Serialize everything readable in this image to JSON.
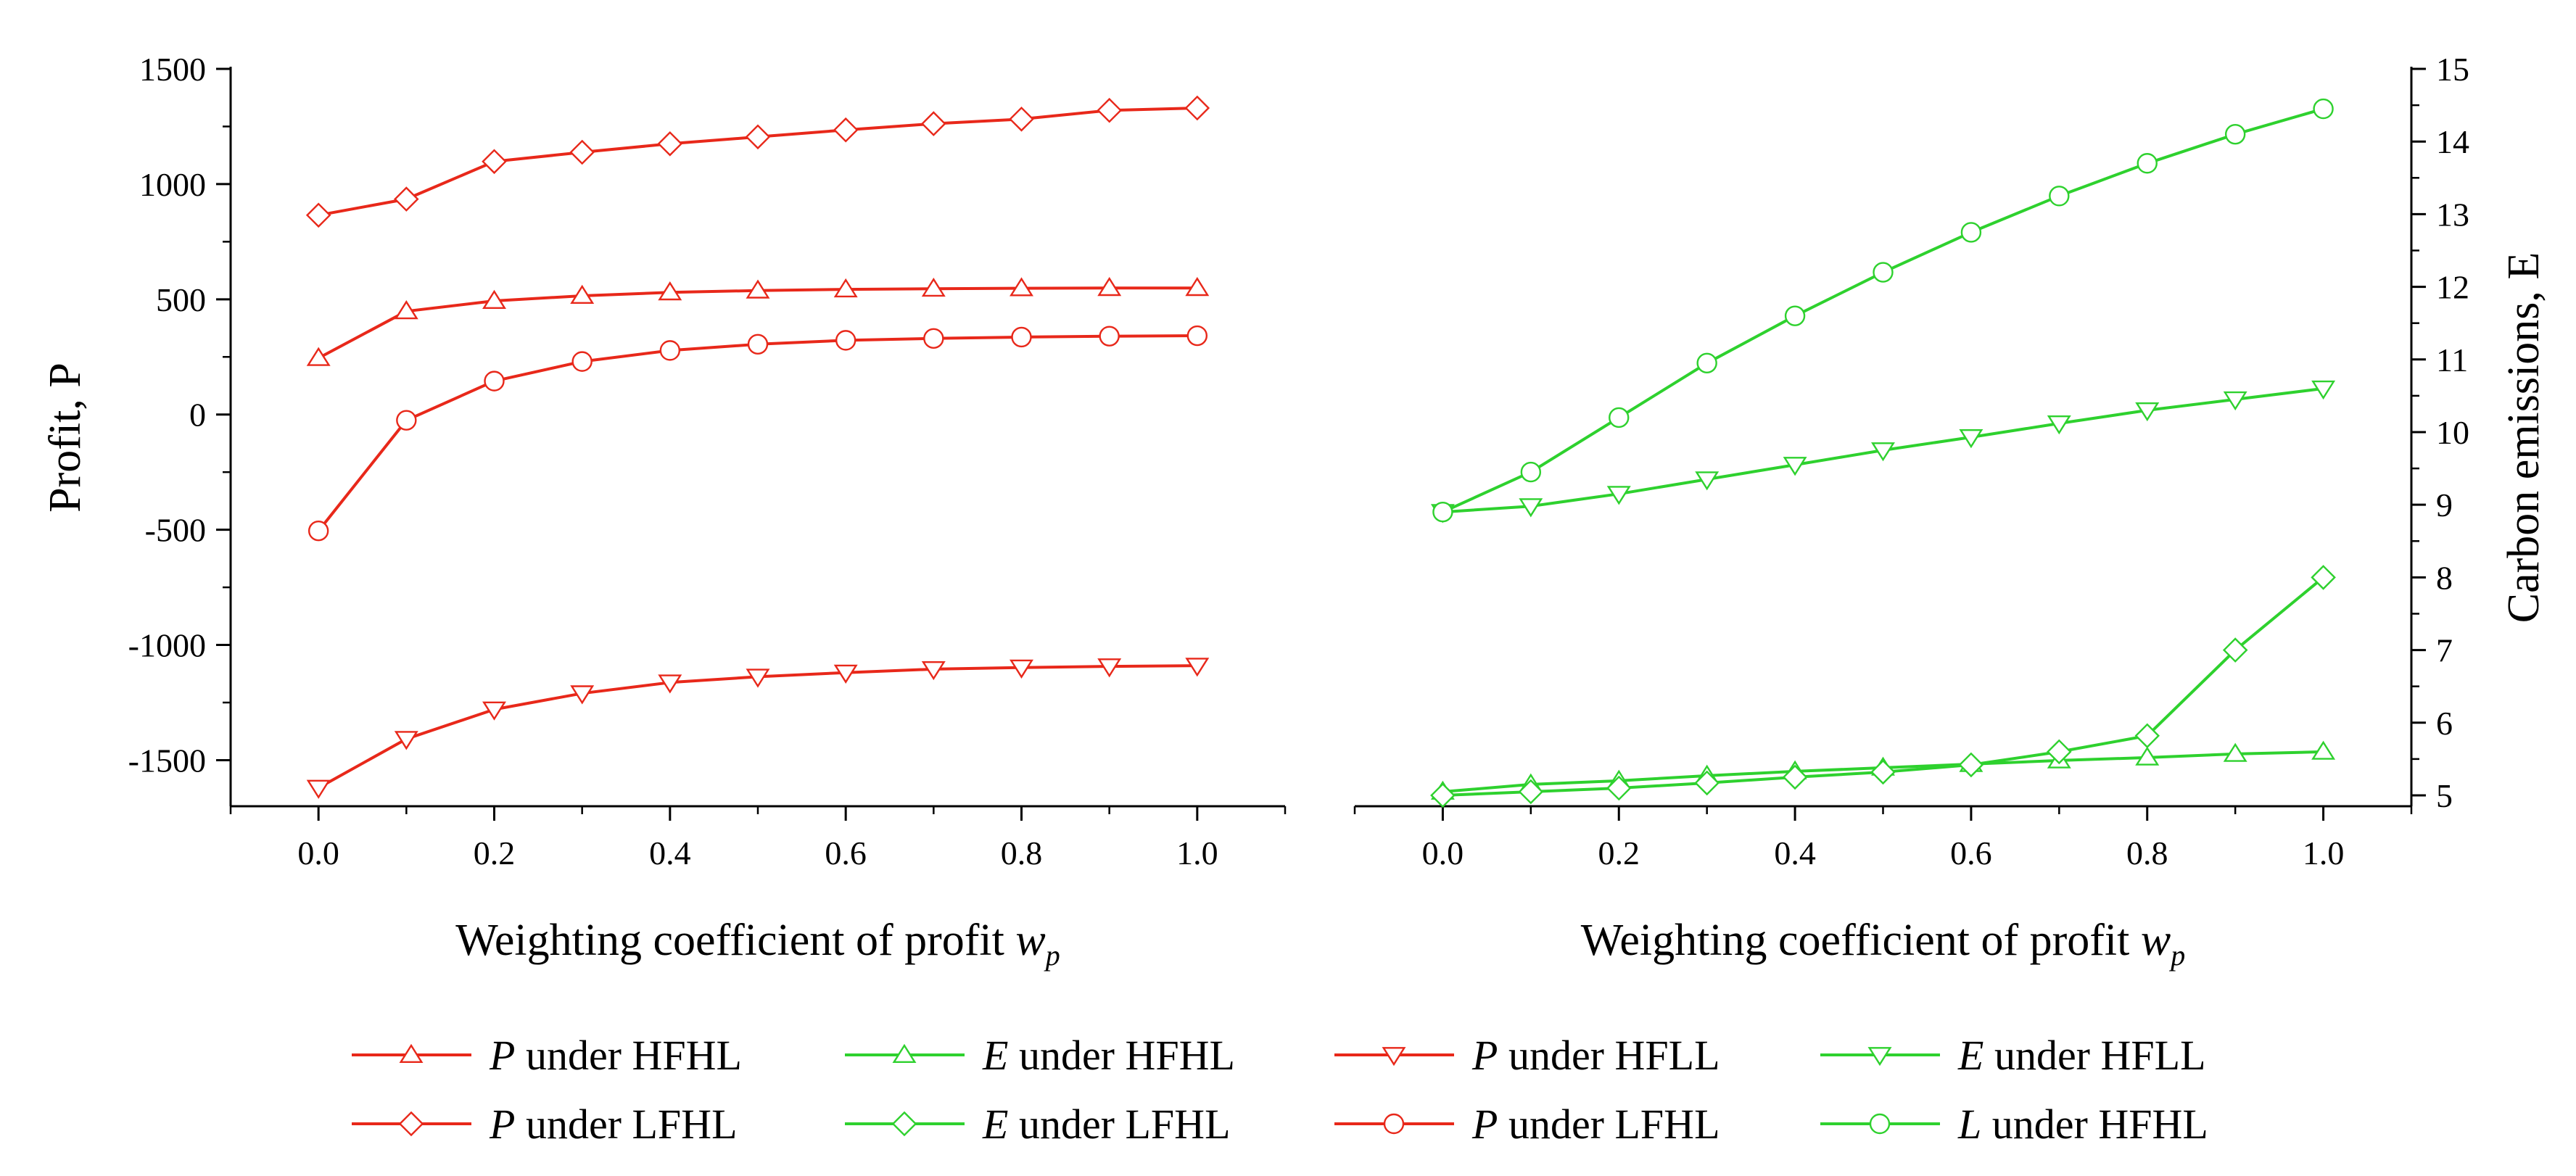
{
  "colors": {
    "profit": "#e8281a",
    "emissions": "#2ed12e",
    "axis": "#000000"
  },
  "chart_data": [
    {
      "type": "line",
      "panel": "left",
      "xlabel": "Weighting coefficient of profit",
      "xlabel_var": "w",
      "xlabel_sub": "p",
      "ylabel": "Profit, P",
      "xlim": [
        -0.1,
        1.1
      ],
      "ylim": [
        -1700,
        1500
      ],
      "xticks": [
        0.0,
        0.2,
        0.4,
        0.6,
        0.8,
        1.0
      ],
      "xtick_labels": [
        "0.0",
        "0.2",
        "0.4",
        "0.6",
        "0.8",
        "1.0"
      ],
      "yticks": [
        -1500,
        -1000,
        -500,
        0,
        500,
        1000,
        1500
      ],
      "ytick_labels": [
        "-1500",
        "-1000",
        "-500",
        "0",
        "500",
        "1000",
        "1500"
      ],
      "x": [
        0.0,
        0.1,
        0.2,
        0.3,
        0.4,
        0.5,
        0.6,
        0.7,
        0.8,
        0.9,
        1.0
      ],
      "series": [
        {
          "name": "P under HFHL",
          "marker": "triangle-up",
          "values": [
            245,
            448,
            493,
            515,
            530,
            538,
            543,
            546,
            548,
            549,
            549
          ]
        },
        {
          "name": "P under HFLL",
          "marker": "triangle-down",
          "values": [
            -1620,
            -1408,
            -1280,
            -1210,
            -1163,
            -1138,
            -1120,
            -1105,
            -1098,
            -1093,
            -1090
          ]
        },
        {
          "name": "P under LFHL",
          "marker": "diamond",
          "values": [
            865,
            935,
            1098,
            1138,
            1175,
            1205,
            1235,
            1262,
            1282,
            1320,
            1330
          ]
        },
        {
          "name": "P under LFHL",
          "marker": "circle",
          "values": [
            -505,
            -25,
            145,
            230,
            278,
            305,
            322,
            330,
            336,
            340,
            342
          ]
        }
      ]
    },
    {
      "type": "line",
      "panel": "right",
      "xlabel": "Weighting coefficient of profit",
      "xlabel_var": "w",
      "xlabel_sub": "p",
      "ylabel": "Carbon emissions, E",
      "xlim": [
        -0.1,
        1.1
      ],
      "ylim": [
        4.85,
        15
      ],
      "xticks": [
        0.0,
        0.2,
        0.4,
        0.6,
        0.8,
        1.0
      ],
      "xtick_labels": [
        "0.0",
        "0.2",
        "0.4",
        "0.6",
        "0.8",
        "1.0"
      ],
      "yticks": [
        5,
        6,
        7,
        8,
        9,
        10,
        11,
        12,
        13,
        14,
        15
      ],
      "ytick_labels": [
        "5",
        "6",
        "7",
        "8",
        "9",
        "10",
        "11",
        "12",
        "13",
        "14",
        "15"
      ],
      "x": [
        0.0,
        0.1,
        0.2,
        0.3,
        0.4,
        0.5,
        0.6,
        0.7,
        0.8,
        0.9,
        1.0
      ],
      "series": [
        {
          "name": "E under HFHL",
          "marker": "triangle-up",
          "values": [
            5.05,
            5.15,
            5.2,
            5.27,
            5.33,
            5.38,
            5.43,
            5.48,
            5.52,
            5.57,
            5.6
          ]
        },
        {
          "name": "E under HFLL",
          "marker": "triangle-down",
          "values": [
            8.9,
            8.98,
            9.15,
            9.35,
            9.55,
            9.75,
            9.93,
            10.12,
            10.3,
            10.45,
            10.6
          ]
        },
        {
          "name": "E under LFHL",
          "marker": "diamond",
          "values": [
            5.0,
            5.05,
            5.1,
            5.17,
            5.25,
            5.32,
            5.42,
            5.6,
            5.82,
            7.0,
            8.0
          ]
        },
        {
          "name": "L under HFHL",
          "marker": "circle",
          "values": [
            8.9,
            9.45,
            10.2,
            10.95,
            11.6,
            12.2,
            12.75,
            13.25,
            13.7,
            14.1,
            14.45
          ]
        }
      ]
    }
  ],
  "legend": [
    {
      "var": "P",
      "text": " under HFHL",
      "color": "profit",
      "marker": "triangle-up"
    },
    {
      "var": "E",
      "text": " under HFHL",
      "color": "emissions",
      "marker": "triangle-up"
    },
    {
      "var": "P",
      "text": " under HFLL",
      "color": "profit",
      "marker": "triangle-down"
    },
    {
      "var": "E",
      "text": " under HFLL",
      "color": "emissions",
      "marker": "triangle-down"
    },
    {
      "var": "P",
      "text": " under LFHL",
      "color": "profit",
      "marker": "diamond"
    },
    {
      "var": "E",
      "text": " under LFHL",
      "color": "emissions",
      "marker": "diamond"
    },
    {
      "var": "P",
      "text": " under LFHL",
      "color": "profit",
      "marker": "circle"
    },
    {
      "var": "L",
      "text": " under HFHL",
      "color": "emissions",
      "marker": "circle"
    }
  ]
}
